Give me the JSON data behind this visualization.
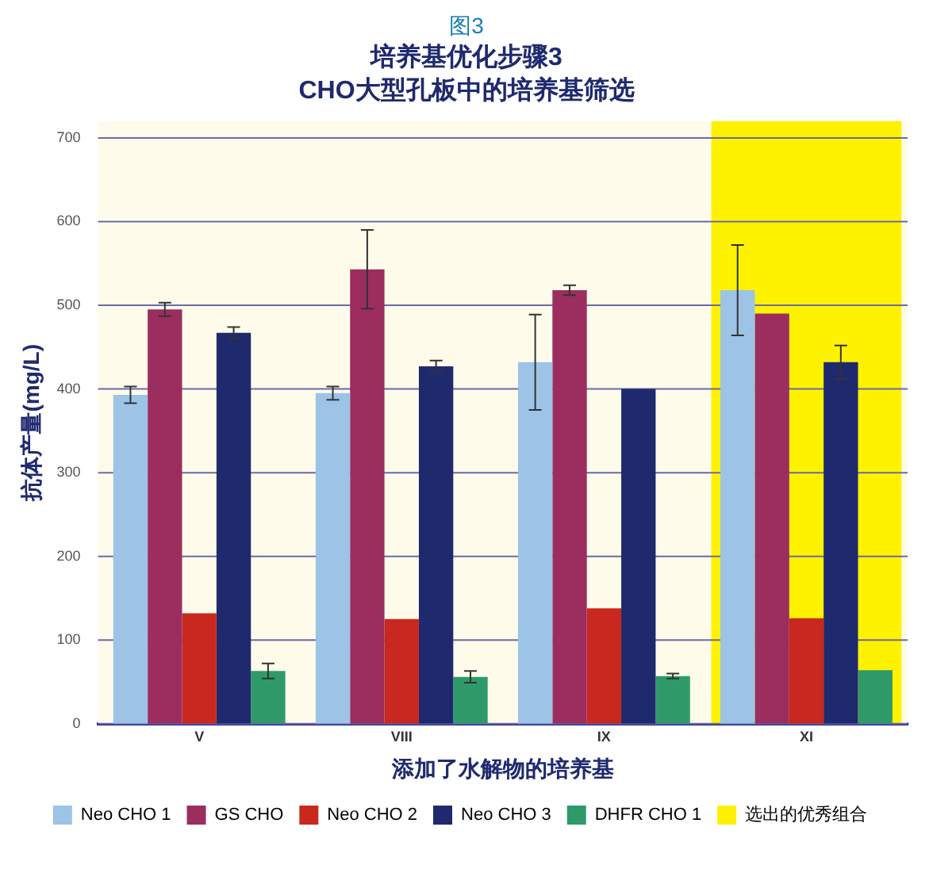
{
  "chart_data": {
    "type": "bar",
    "title": "培养基优化步骤3",
    "subtitle": "CHO大型孔板中的培养基筛选",
    "annotations": [
      "图3"
    ],
    "xlabel": "添加了水解物的培养基",
    "ylabel": "抗体产量(mg/L)",
    "categories": [
      "V",
      "VIII",
      "IX",
      "XI"
    ],
    "series": [
      {
        "name": "Neo CHO 1",
        "color": "#9dc3e6",
        "values": [
          393,
          395,
          432,
          518
        ],
        "errors": [
          10,
          8,
          57,
          54
        ]
      },
      {
        "name": "GS CHO",
        "color": "#9b2d5f",
        "values": [
          495,
          543,
          518,
          490
        ],
        "errors": [
          8,
          47,
          6,
          null
        ]
      },
      {
        "name": "Neo CHO 2",
        "color": "#c8281e",
        "values": [
          132,
          125,
          138,
          126
        ],
        "errors": [
          null,
          null,
          null,
          null
        ]
      },
      {
        "name": "Neo CHO 3",
        "color": "#1f2a6e",
        "values": [
          467,
          427,
          400,
          432
        ],
        "errors": [
          7,
          7,
          null,
          20
        ]
      },
      {
        "name": "DHFR CHO 1",
        "color": "#2e9a6a",
        "values": [
          63,
          56,
          57,
          64
        ],
        "errors": [
          9,
          7,
          3,
          null
        ]
      }
    ],
    "bands": [
      {
        "axis": "x",
        "from": "XI",
        "to": "XI",
        "label": "选出的优秀组合",
        "color": "#fff200"
      }
    ],
    "ylim": [
      0,
      720
    ],
    "yticks": [
      0,
      100,
      200,
      300,
      400,
      500,
      600,
      700
    ],
    "grid": "y",
    "legend": "bottom"
  }
}
